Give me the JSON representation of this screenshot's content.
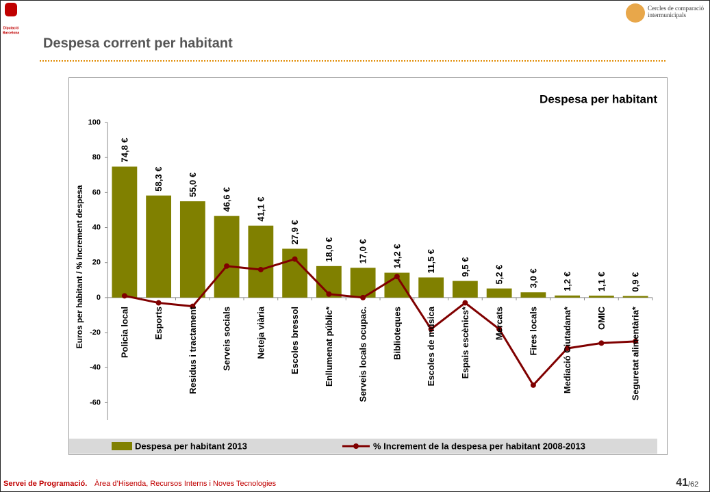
{
  "slide": {
    "title": "Despesa corrent per habitant",
    "logo_text": [
      "Diputació",
      "Barcelona"
    ],
    "badge_text": [
      "Cercles de comparació",
      "intermunicipals"
    ],
    "footer_bold": "Servei de Programació.",
    "footer_text": "Àrea d’Hisenda, Recursos Interns i Noves Tecnologies",
    "page_number": "41",
    "page_total": "/62"
  },
  "chart_data": {
    "type": "bar",
    "title": "Despesa per habitant",
    "ylabel": "Euros per habitant / % Increment despesa",
    "categories": [
      "Policia local",
      "Esports",
      "Residus i tractament",
      "Serveis socials",
      "Neteja viària",
      "Escoles bressol",
      "Enllumenat públic*",
      "Serveis locals ocupac.",
      "Biblioteques",
      "Escoles de música",
      "Espais escènics*",
      "Mercats",
      "Fires locals",
      "Mediació Ciutadana*",
      "OMIC",
      "Seguretat alimentària*"
    ],
    "series": [
      {
        "name": "Despesa per habitant 2013",
        "type": "bar",
        "color": "#808000",
        "values": [
          74.8,
          58.3,
          55.0,
          46.6,
          41.1,
          27.9,
          18.0,
          17.0,
          14.2,
          11.5,
          9.5,
          5.2,
          3.0,
          1.2,
          1.1,
          0.9
        ],
        "value_labels": [
          "74,8 €",
          "58,3 €",
          "55,0 €",
          "46,6 €",
          "41,1 €",
          "27,9 €",
          "18,0 €",
          "17,0 €",
          "14,2 €",
          "11,5 €",
          "9,5 €",
          "5,2 €",
          "3,0 €",
          "1,2 €",
          "1,1 €",
          "0,9 €"
        ]
      },
      {
        "name": "% Increment de la despesa per habitant 2008-2013",
        "type": "line",
        "color": "#800000",
        "values": [
          1,
          -3,
          -5,
          18,
          16,
          22,
          2,
          0,
          12,
          -18,
          -3,
          -18,
          -50,
          -29,
          -26,
          -25
        ]
      }
    ],
    "ylim": [
      -70,
      100
    ],
    "yticks": [
      -60,
      -40,
      -20,
      0,
      20,
      40,
      60,
      80,
      100
    ],
    "grid": false,
    "legend": "bottom"
  }
}
